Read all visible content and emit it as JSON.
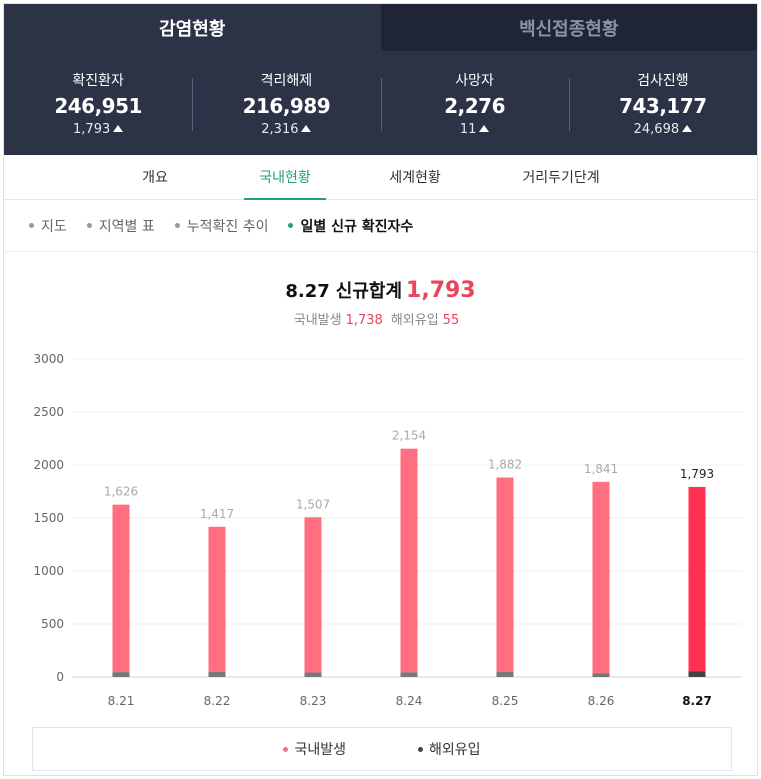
{
  "top_tabs": [
    {
      "label": "감염현황"
    },
    {
      "label": "백신접종현황"
    }
  ],
  "stats": [
    {
      "label": "확진환자",
      "value": "246,951",
      "change": "1,793"
    },
    {
      "label": "격리해제",
      "value": "216,989",
      "change": "2,316"
    },
    {
      "label": "사망자",
      "value": "2,276",
      "change": "11"
    },
    {
      "label": "검사진행",
      "value": "743,177",
      "change": "24,698"
    }
  ],
  "sub_tabs": [
    {
      "label": "개요"
    },
    {
      "label": "국내현황"
    },
    {
      "label": "세계현황"
    },
    {
      "label": "거리두기단계"
    }
  ],
  "dot_tabs": [
    {
      "label": "지도"
    },
    {
      "label": "지역별 표"
    },
    {
      "label": "누적확진 추이"
    },
    {
      "label": "일별 신규 확진자수"
    }
  ],
  "summary": {
    "date": "8.27",
    "title": "신규합계",
    "total": "1,793",
    "domestic_label": "국내발생",
    "domestic_value": "1,738",
    "overseas_label": "해외유입",
    "overseas_value": "55"
  },
  "colors": {
    "domestic": "#ff6f7f",
    "domestic_latest": "#ff3150",
    "overseas": "#777777",
    "overseas_latest": "#444444",
    "accent_green": "#1fa56c"
  },
  "chart_data": {
    "type": "bar",
    "stacked": true,
    "categories": [
      "8.21",
      "8.22",
      "8.23",
      "8.24",
      "8.25",
      "8.26",
      "8.27"
    ],
    "series": [
      {
        "name": "국내발생",
        "values": [
          1580,
          1368,
          1465,
          2110,
          1832,
          1805,
          1738
        ]
      },
      {
        "name": "해외유입",
        "values": [
          46,
          49,
          42,
          44,
          50,
          36,
          55
        ]
      }
    ],
    "totals": [
      1626,
      1417,
      1507,
      2154,
      1882,
      1841,
      1793
    ],
    "total_labels": [
      "1,626",
      "1,417",
      "1,507",
      "2,154",
      "1,882",
      "1,841",
      "1,793"
    ],
    "yticks": [
      0,
      500,
      1000,
      1500,
      2000,
      2500,
      3000
    ],
    "ylim": [
      0,
      3000
    ],
    "grid": true,
    "legend": "bottom"
  }
}
